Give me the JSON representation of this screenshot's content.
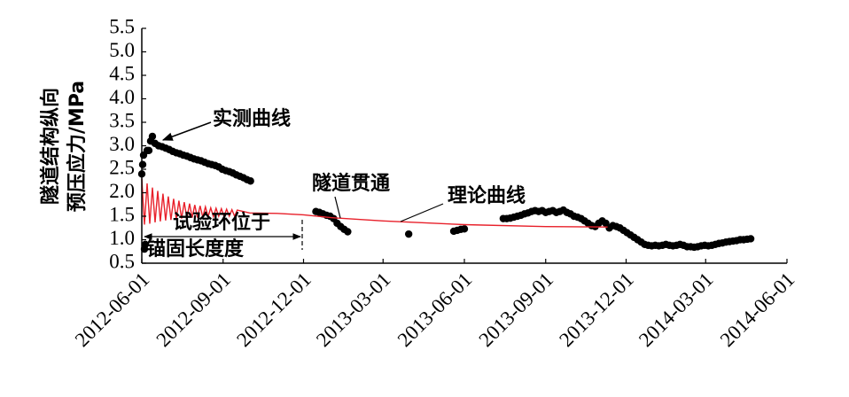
{
  "chart_data": {
    "type": "line",
    "ylabel": [
      "隧道结构纵向",
      "预压应力/MPa"
    ],
    "annotations": [
      "隧道贯通",
      "试验环位于",
      "锚固长度度"
    ],
    "xlim": [
      "2012-06-01",
      "2014-06-01"
    ],
    "xticks": [
      "2012-06-01",
      "2012-09-01",
      "2012-12-01",
      "2013-03-01",
      "2013-06-01",
      "2013-09-01",
      "2013-12-01",
      "2014-03-01",
      "2014-06-01"
    ],
    "ylim": [
      0.5,
      5.5
    ],
    "yticks": [
      0.5,
      {
        "value": 1,
        "label": "1.0"
      },
      1.5,
      {
        "value": 2,
        "label": "2.0"
      },
      2.5,
      {
        "value": 3,
        "label": "3.0"
      },
      3.5,
      {
        "value": 4,
        "label": "4.0"
      },
      4.5,
      {
        "value": 5,
        "label": "5.0"
      },
      5.5
    ],
    "series": [
      {
        "name": "实测曲线",
        "color": "#000000",
        "marker": "dot",
        "x": [
          "2012-06-01",
          "2012-06-02",
          "2012-06-03",
          "2012-06-04",
          "2012-06-05",
          "2012-06-07",
          "2012-06-09",
          "2012-06-11",
          "2012-06-13",
          "2012-06-16",
          "2012-06-20",
          "2012-06-24",
          "2012-06-28",
          "2012-07-02",
          "2012-07-06",
          "2012-07-10",
          "2012-07-14",
          "2012-07-18",
          "2012-07-22",
          "2012-07-26",
          "2012-07-30",
          "2012-08-03",
          "2012-08-07",
          "2012-08-11",
          "2012-08-15",
          "2012-08-19",
          "2012-08-23",
          "2012-08-27",
          "2012-08-31",
          "2012-09-04",
          "2012-09-08",
          "2012-09-12",
          "2012-09-16",
          "2012-09-20",
          "2012-09-24",
          "2012-09-28",
          "2012-10-02",
          "2012-12-15",
          "2012-12-19",
          "2012-12-23",
          "2012-12-27",
          "2012-12-31",
          "2013-01-04",
          "2013-01-08",
          "2013-01-12",
          "2013-01-16",
          "2013-01-20",
          "2013-03-30",
          "2013-05-20",
          "2013-05-24",
          "2013-05-28",
          "2013-06-01",
          "2013-07-15",
          "2013-07-19",
          "2013-07-23",
          "2013-07-27",
          "2013-07-31",
          "2013-08-04",
          "2013-08-08",
          "2013-08-12",
          "2013-08-16",
          "2013-08-20",
          "2013-08-24",
          "2013-08-28",
          "2013-09-01",
          "2013-09-05",
          "2013-09-09",
          "2013-09-13",
          "2013-09-17",
          "2013-09-21",
          "2013-09-25",
          "2013-09-29",
          "2013-10-03",
          "2013-10-07",
          "2013-10-11",
          "2013-10-15",
          "2013-10-19",
          "2013-10-23",
          "2013-10-27",
          "2013-10-31",
          "2013-11-04",
          "2013-11-08",
          "2013-11-12",
          "2013-11-16",
          "2013-11-20",
          "2013-11-24",
          "2013-11-28",
          "2013-12-02",
          "2013-12-06",
          "2013-12-10",
          "2013-12-14",
          "2013-12-18",
          "2013-12-22",
          "2013-12-26",
          "2013-12-30",
          "2014-01-03",
          "2014-01-07",
          "2014-01-11",
          "2014-01-15",
          "2014-01-19",
          "2014-01-23",
          "2014-01-27",
          "2014-01-31",
          "2014-02-04",
          "2014-02-08",
          "2014-02-12",
          "2014-02-16",
          "2014-02-20",
          "2014-02-24",
          "2014-02-28",
          "2014-03-04",
          "2014-03-08",
          "2014-03-12",
          "2014-03-16",
          "2014-03-20",
          "2014-03-24",
          "2014-03-28",
          "2014-04-01",
          "2014-04-05",
          "2014-04-09",
          "2014-04-13",
          "2014-04-17",
          "2014-04-21"
        ],
        "values": [
          2.4,
          2.6,
          2.8,
          0.8,
          0.9,
          2.9,
          2.9,
          3.1,
          3.2,
          3.05,
          3.0,
          2.98,
          2.95,
          2.92,
          2.88,
          2.85,
          2.83,
          2.8,
          2.78,
          2.75,
          2.72,
          2.7,
          2.68,
          2.65,
          2.62,
          2.6,
          2.58,
          2.55,
          2.5,
          2.47,
          2.45,
          2.42,
          2.38,
          2.35,
          2.32,
          2.28,
          2.25,
          1.6,
          1.58,
          1.55,
          1.52,
          1.5,
          1.45,
          1.35,
          1.28,
          1.22,
          1.17,
          1.12,
          1.18,
          1.2,
          1.22,
          1.23,
          1.45,
          1.45,
          1.46,
          1.48,
          1.5,
          1.52,
          1.55,
          1.57,
          1.6,
          1.62,
          1.6,
          1.62,
          1.58,
          1.6,
          1.62,
          1.58,
          1.6,
          1.63,
          1.58,
          1.55,
          1.5,
          1.48,
          1.45,
          1.4,
          1.35,
          1.3,
          1.28,
          1.35,
          1.4,
          1.35,
          1.25,
          1.3,
          1.28,
          1.25,
          1.2,
          1.15,
          1.1,
          1.05,
          1.0,
          0.95,
          0.9,
          0.88,
          0.87,
          0.88,
          0.87,
          0.88,
          0.9,
          0.88,
          0.87,
          0.88,
          0.9,
          0.88,
          0.85,
          0.85,
          0.84,
          0.85,
          0.87,
          0.88,
          0.87,
          0.88,
          0.9,
          0.92,
          0.93,
          0.95,
          0.96,
          0.97,
          0.98,
          1.0,
          1.0,
          1.01,
          1.02
        ]
      },
      {
        "name": "理论曲线",
        "color": "#e8202a",
        "marker": "line",
        "x": [
          "2012-06-01",
          "2012-06-04",
          "2012-06-07",
          "2012-06-10",
          "2012-06-13",
          "2012-06-16",
          "2012-06-19",
          "2012-06-22",
          "2012-06-25",
          "2012-06-28",
          "2012-07-01",
          "2012-07-04",
          "2012-07-07",
          "2012-07-10",
          "2012-07-13",
          "2012-07-16",
          "2012-07-19",
          "2012-07-22",
          "2012-07-25",
          "2012-07-28",
          "2012-07-31",
          "2012-08-03",
          "2012-08-06",
          "2012-08-09",
          "2012-08-12",
          "2012-08-15",
          "2012-08-18",
          "2012-08-21",
          "2012-08-24",
          "2012-08-27",
          "2012-08-30",
          "2012-09-02",
          "2012-09-05",
          "2012-09-08",
          "2012-09-11",
          "2012-09-14",
          "2012-09-17",
          "2012-10-01",
          "2012-11-01",
          "2012-12-01",
          "2013-01-01",
          "2013-03-01",
          "2013-06-01",
          "2013-09-01",
          "2013-11-10"
        ],
        "values": [
          2.3,
          1.32,
          2.2,
          1.34,
          2.11,
          1.37,
          2.04,
          1.39,
          1.98,
          1.41,
          1.92,
          1.42,
          1.87,
          1.44,
          1.83,
          1.45,
          1.8,
          1.46,
          1.77,
          1.47,
          1.74,
          1.47,
          1.72,
          1.48,
          1.7,
          1.49,
          1.68,
          1.49,
          1.67,
          1.5,
          1.66,
          1.5,
          1.65,
          1.5,
          1.64,
          1.5,
          1.63,
          1.57,
          1.56,
          1.53,
          1.47,
          1.4,
          1.32,
          1.28,
          1.27
        ]
      }
    ]
  }
}
